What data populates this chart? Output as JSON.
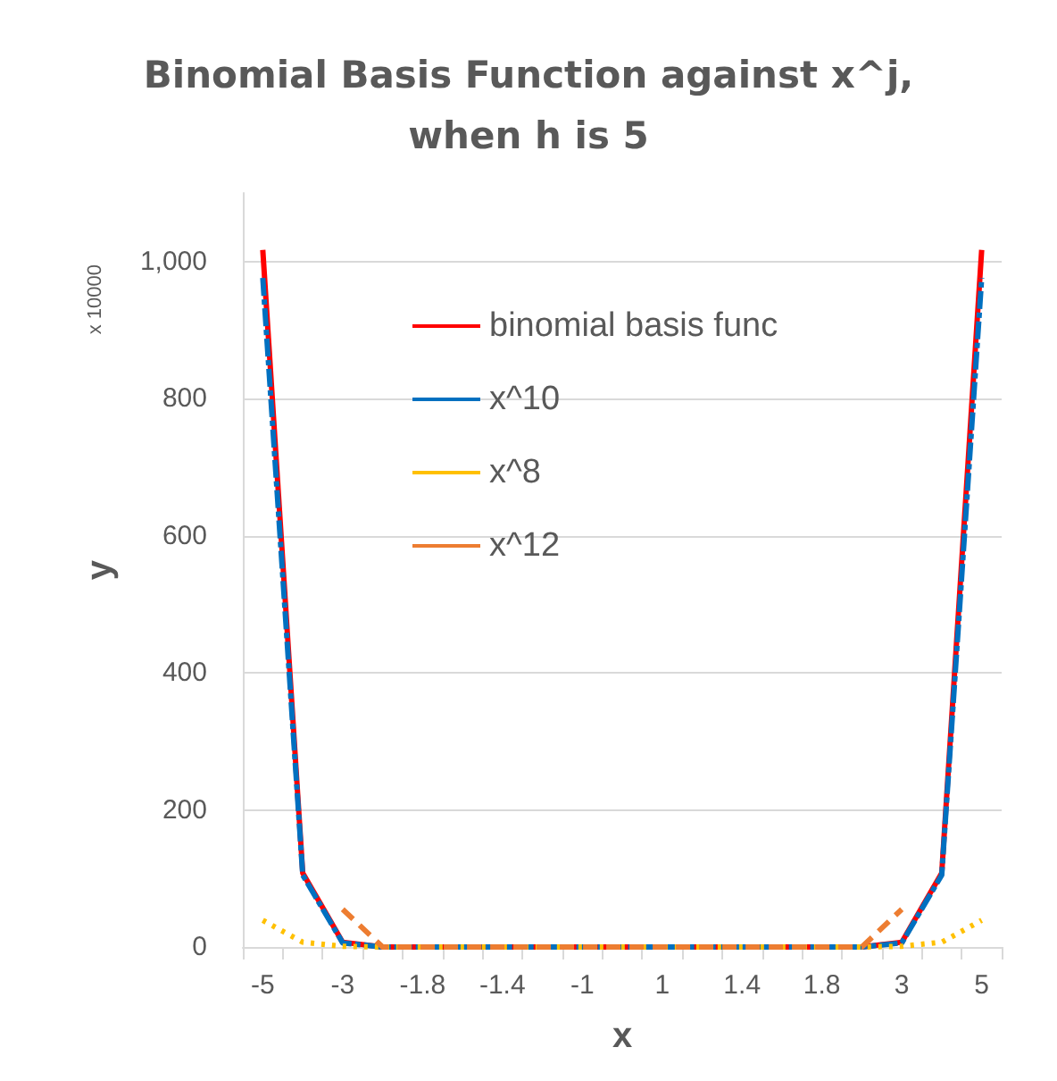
{
  "chart_data": {
    "type": "line",
    "title": "Binomial Basis Function against x^j,\nwhen h is 5",
    "xlabel": "x",
    "ylabel": "y",
    "annotations": [
      "x 10000"
    ],
    "categories": [
      "-5",
      null,
      "-3",
      null,
      "-1.8",
      null,
      "-1.4",
      null,
      "-1",
      null,
      "1",
      null,
      "1.4",
      null,
      "1.8",
      null,
      "3",
      null,
      "5"
    ],
    "series": [
      {
        "name": "binomial basis func",
        "color": "#ff0000",
        "line_style": "solid",
        "values": [
          1017,
          108,
          7,
          0,
          0,
          0,
          0,
          0,
          0,
          0,
          0,
          0,
          0,
          0,
          0,
          0,
          7,
          108,
          1017
        ]
      },
      {
        "name": "x^10",
        "color": "#0070c0",
        "line_style": "dashdot",
        "values": [
          976,
          105,
          6,
          0,
          0,
          0,
          0,
          0,
          0,
          0,
          0,
          0,
          0,
          0,
          0,
          0,
          6,
          105,
          976
        ]
      },
      {
        "name": "x^8",
        "color": "#ffc000",
        "line_style": "dotted",
        "values": [
          39,
          7,
          1,
          0,
          0,
          0,
          0,
          0,
          0,
          0,
          0,
          0,
          0,
          0,
          0,
          0,
          1,
          7,
          39
        ]
      },
      {
        "name": "x^12",
        "color": "#ed7d31",
        "line_style": "dashed",
        "values": [
          null,
          null,
          55,
          0,
          0,
          0,
          0,
          0,
          0,
          0,
          0,
          0,
          0,
          0,
          0,
          0,
          55,
          null,
          null
        ]
      }
    ],
    "ylim": [
      0,
      1100
    ],
    "yticks": [
      0,
      200,
      400,
      600,
      800,
      {
        "value": 1000,
        "label": "1,000"
      }
    ],
    "grid": "y",
    "legend": "top",
    "marker": "none"
  }
}
